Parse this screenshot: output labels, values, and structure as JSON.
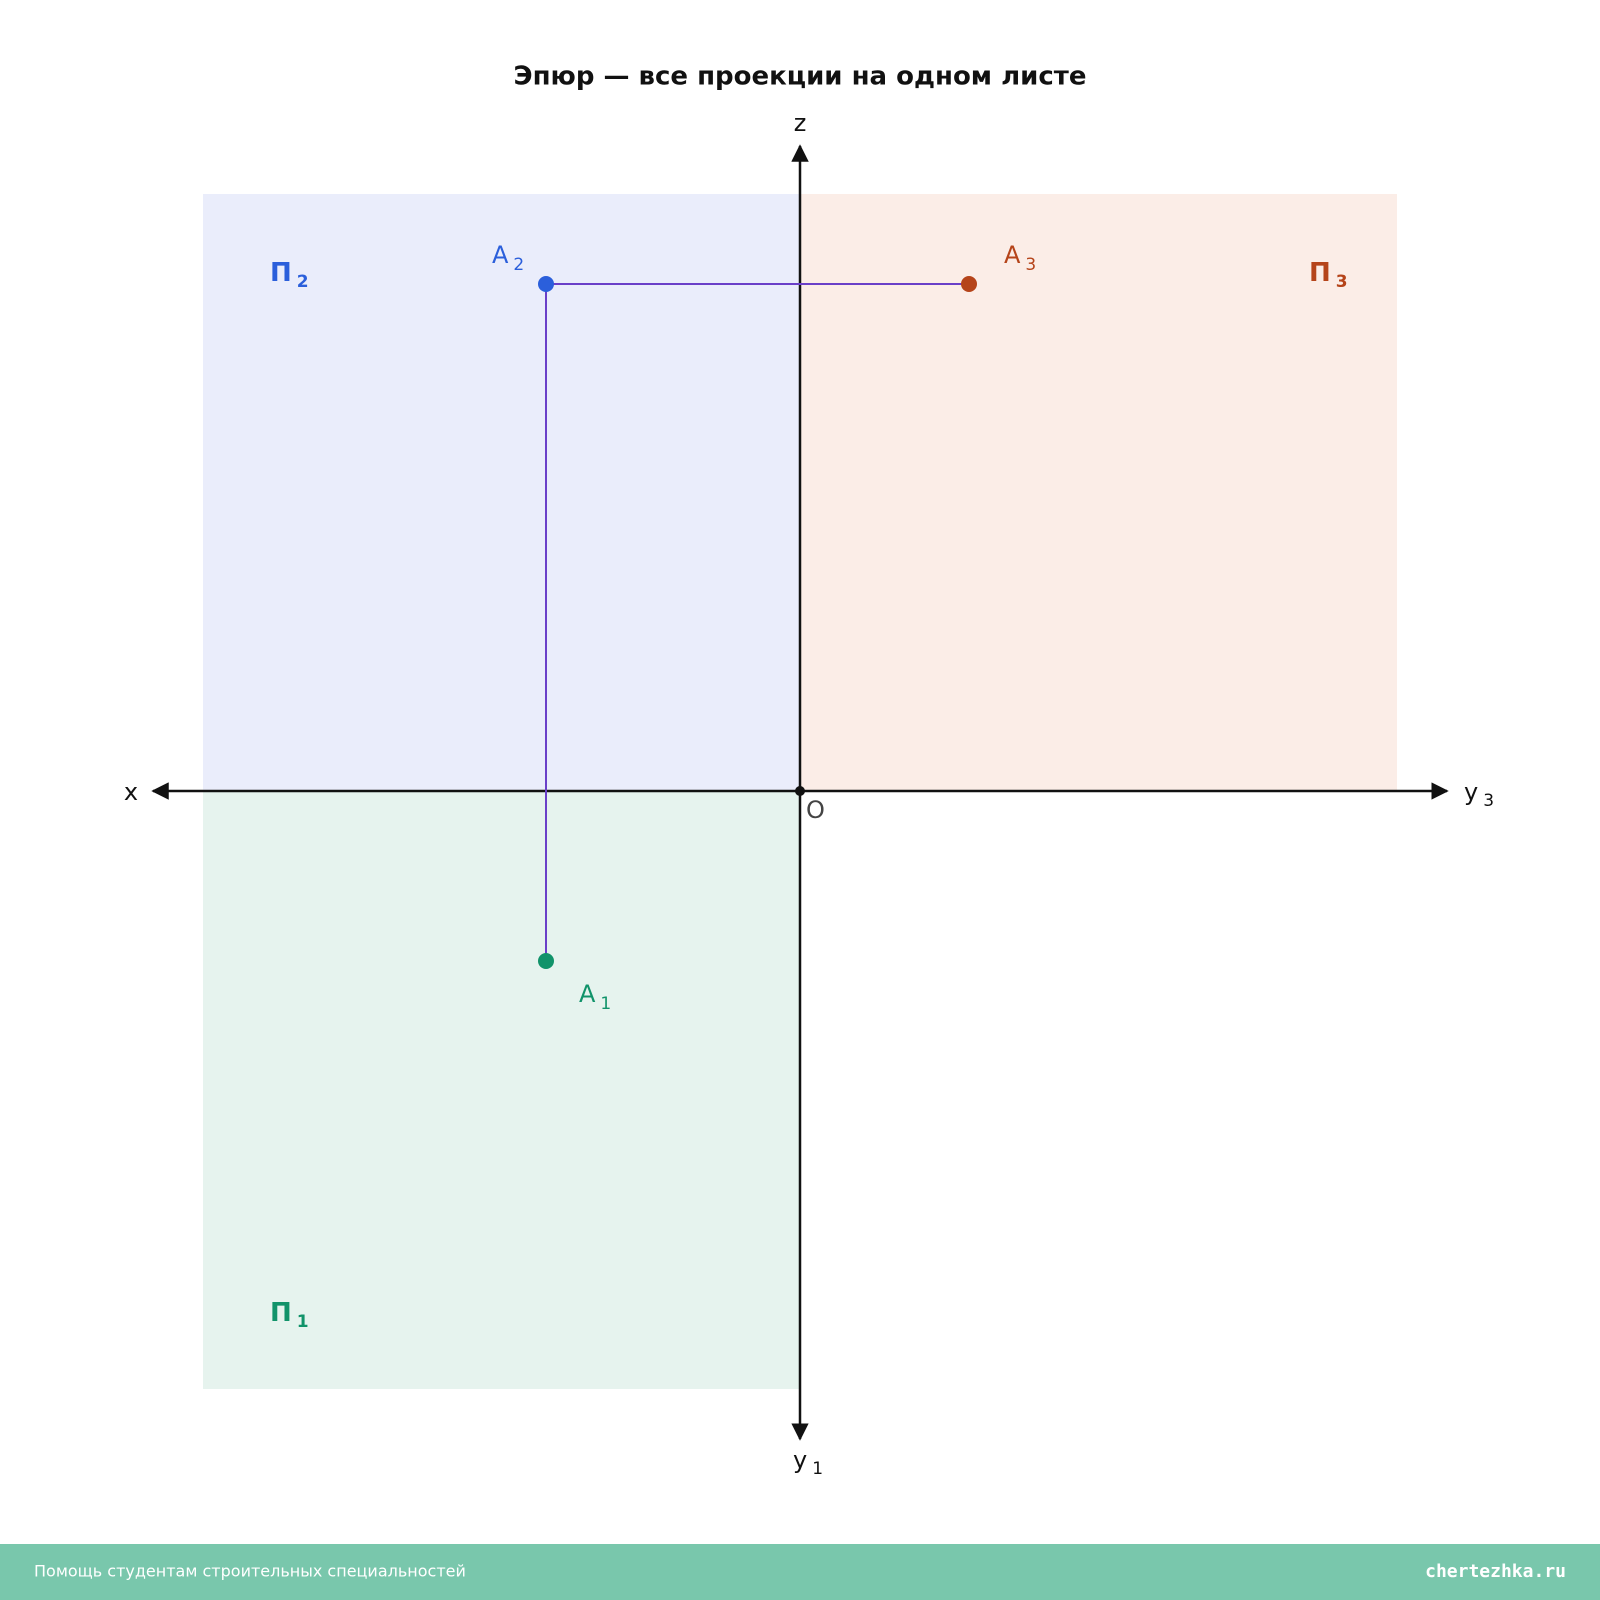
{
  "title": "Эпюр — все проекции на одном листе",
  "axes": {
    "x": "x",
    "z": "z",
    "y3": {
      "base": "y",
      "sub": "3"
    },
    "y1": {
      "base": "y",
      "sub": "1"
    },
    "origin": "O"
  },
  "planes": [
    {
      "base": "П",
      "sub": "2"
    },
    {
      "base": "П",
      "sub": "3"
    },
    {
      "base": "П",
      "sub": "1"
    }
  ],
  "points": [
    {
      "base": "A",
      "sub": "2"
    },
    {
      "base": "A",
      "sub": "3"
    },
    {
      "base": "A",
      "sub": "1"
    }
  ],
  "footer": {
    "left": "Помощь студентам строительных специальностей",
    "right": "chertezhka.ru"
  }
}
